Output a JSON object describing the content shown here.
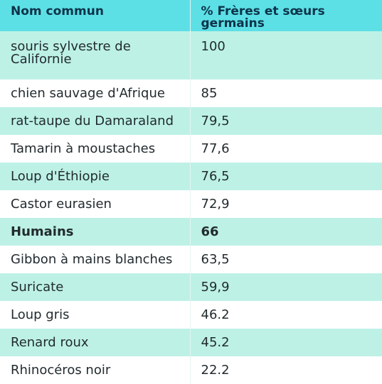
{
  "header": {
    "col1": "Nom commun",
    "col2": "% Frères et sœurs germains"
  },
  "rows": [
    {
      "name": "souris sylvestre de Californie",
      "value": "100"
    },
    {
      "name": "chien sauvage d'Afrique",
      "value": "85"
    },
    {
      "name": "rat-taupe du Damaraland",
      "value": "79,5"
    },
    {
      "name": "Tamarin à moustaches",
      "value": "77,6"
    },
    {
      "name": "Loup d'Éthiopie",
      "value": "76,5"
    },
    {
      "name": "Castor eurasien",
      "value": "72,9"
    },
    {
      "name": "Humains",
      "value": "66"
    },
    {
      "name": "Gibbon à mains blanches",
      "value": "63,5"
    },
    {
      "name": "Suricate",
      "value": "59,9"
    },
    {
      "name": "Loup gris",
      "value": "46.2"
    },
    {
      "name": "Renard roux",
      "value": "45.2"
    },
    {
      "name": "Rhinocéros noir",
      "value": "22.2"
    }
  ],
  "highlighted_row": "Humains",
  "colors": {
    "header_bg": "#5ce0e6",
    "header_text": "#0d3349",
    "stripe_bg": "#bdf1e6",
    "plain_bg": "#ffffff"
  }
}
